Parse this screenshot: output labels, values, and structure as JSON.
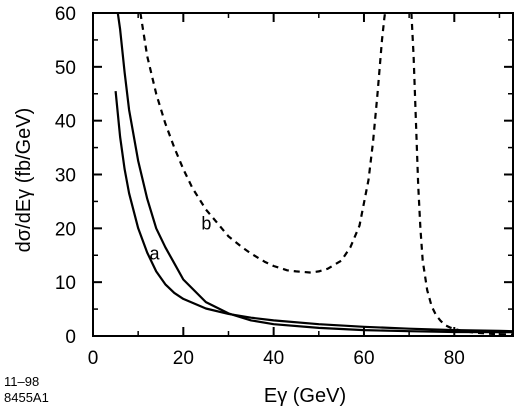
{
  "chart_data": {
    "type": "line",
    "xlabel": "Eγ   (GeV)",
    "ylabel": "dσ/dEγ   (fb/GeV)",
    "xlim": [
      0,
      93
    ],
    "ylim": [
      0,
      60
    ],
    "x_ticks": [
      0,
      20,
      40,
      60,
      80
    ],
    "y_ticks": [
      0,
      10,
      20,
      30,
      40,
      50,
      60
    ],
    "grid": false,
    "legend": "none",
    "series": [
      {
        "name": "a",
        "style": "solid",
        "color": "#000000",
        "x": [
          5,
          6,
          7,
          8,
          10,
          12,
          14,
          16,
          18,
          20,
          25,
          30,
          35,
          40,
          50,
          60,
          70,
          80,
          90,
          93
        ],
        "y": [
          45.5,
          37,
          31,
          26.5,
          20,
          15.5,
          12,
          9.6,
          8,
          6.9,
          5.1,
          4.1,
          3.4,
          2.9,
          2.2,
          1.7,
          1.35,
          1.1,
          0.95,
          0.9
        ]
      },
      {
        "name": "b",
        "style": "solid",
        "color": "#000000",
        "x": [
          5.5,
          6,
          7,
          8,
          10,
          12,
          14,
          16,
          18,
          20,
          25,
          30,
          35,
          40,
          50,
          60,
          70,
          80,
          90,
          93
        ],
        "y": [
          60,
          57,
          49,
          42,
          32.5,
          25.5,
          20,
          16.5,
          13.5,
          10.5,
          6.3,
          4.2,
          2.9,
          2.2,
          1.5,
          1.1,
          0.9,
          0.75,
          0.7,
          0.7
        ]
      },
      {
        "name": "",
        "style": "dashed",
        "color": "#000000",
        "x": [
          10.5,
          12,
          14,
          16,
          18,
          20,
          22,
          25,
          28,
          30,
          33,
          35,
          38,
          40,
          43,
          45,
          48,
          50,
          52,
          55,
          57,
          59,
          61,
          62,
          63,
          64,
          64.5,
          65
        ],
        "y": [
          60,
          52,
          45,
          39.5,
          35,
          31,
          27.5,
          23.5,
          20.5,
          18.5,
          16.5,
          15.3,
          13.8,
          13,
          12.2,
          12,
          11.8,
          12,
          12.5,
          14,
          16.5,
          20.5,
          29,
          36,
          45,
          55,
          59,
          62
        ]
      },
      {
        "name": "",
        "style": "dashed",
        "color": "#000000",
        "x": [
          70.5,
          71,
          71.5,
          72,
          72.5,
          73,
          74,
          75,
          76,
          77,
          78,
          79,
          80,
          82,
          85,
          88,
          91,
          93
        ],
        "y": [
          60,
          52,
          40,
          28,
          20,
          14,
          8.5,
          5.5,
          3.8,
          2.8,
          2,
          1.6,
          1.3,
          0.9,
          0.6,
          0.4,
          0.3,
          0.25
        ]
      }
    ],
    "annotations": [
      "11–98",
      "8455A1"
    ]
  }
}
